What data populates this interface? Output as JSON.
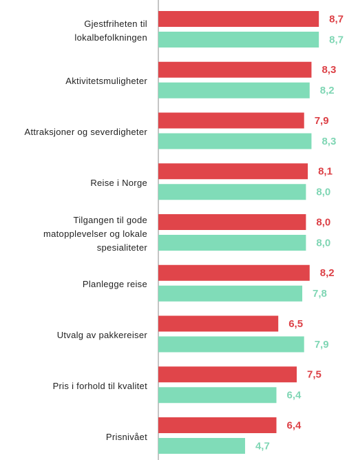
{
  "chart_data": {
    "type": "barh",
    "categories": [
      "Gjestfriheten til lokalbefolkningen",
      "Aktivitetsmuligheter",
      "Attraksjoner og severdigheter",
      "Reise i Norge",
      "Tilgangen til gode matopplevelser og lokale spesialiteter",
      "Planlegge reise",
      "Utvalg av pakkereiser",
      "Pris i forhold til kvalitet",
      "Prisnivået"
    ],
    "series": [
      {
        "color": "#e0454a",
        "label_color": "#dc4046",
        "values": [
          8.7,
          8.3,
          7.9,
          8.1,
          8.0,
          8.2,
          6.5,
          7.5,
          6.4
        ],
        "value_labels": [
          "8,7",
          "8,3",
          "7,9",
          "8,1",
          "8,0",
          "8,2",
          "6,5",
          "7,5",
          "6,4"
        ]
      },
      {
        "color": "#80dcb8",
        "label_color": "#7fd6b4",
        "values": [
          8.7,
          8.2,
          8.3,
          8.0,
          8.0,
          7.8,
          7.9,
          6.4,
          4.7
        ],
        "value_labels": [
          "8,7",
          "8,2",
          "8,3",
          "8,0",
          "8,0",
          "7,8",
          "7,9",
          "6,4",
          "4,7"
        ]
      }
    ],
    "xlim": [
      0,
      10
    ]
  }
}
